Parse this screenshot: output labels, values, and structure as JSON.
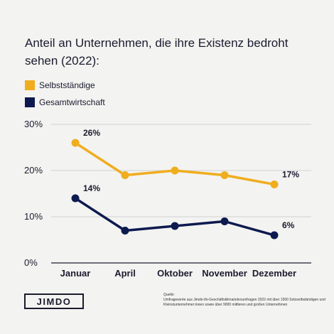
{
  "chart_data": {
    "type": "line",
    "title": "Anteil an Unternehmen, die ihre Existenz bedroht sehen (2022):",
    "categories": [
      "Januar",
      "April",
      "Oktober",
      "November",
      "Dezember"
    ],
    "ylim": [
      0,
      30
    ],
    "yticks": [
      "0%",
      "10%",
      "20%",
      "30%"
    ],
    "grid": true,
    "legend_position": "top-left",
    "series": [
      {
        "name": "Selbstständige",
        "color": "#f0ad1e",
        "values": [
          26,
          19,
          20,
          19,
          17
        ],
        "labels": [
          "26%",
          "",
          "",
          "",
          "17%"
        ]
      },
      {
        "name": "Gesamtwirtschaft",
        "color": "#0d1a4f",
        "values": [
          14,
          7,
          8,
          9,
          6
        ],
        "labels": [
          "14%",
          "",
          "",
          "",
          "6%"
        ]
      }
    ]
  },
  "logo": "JIMDO",
  "source": {
    "heading": "Quelle:",
    "text": "Umfragewerte aus Jimdo-ifo-Geschäftsklimaindexumfragen 2022 mit über 1500 Soloselbständigen und Kleinstunternehmer:innen sowie über 9000 mittleren und großen Unternehmen"
  }
}
